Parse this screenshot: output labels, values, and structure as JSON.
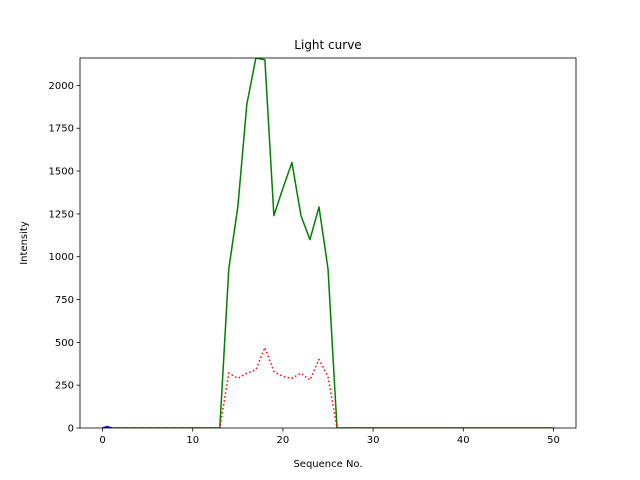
{
  "chart_data": {
    "type": "line",
    "title": "Light curve",
    "xlabel": "Sequence No.",
    "ylabel": "Intensity",
    "xlim": [
      -2.5,
      52.5
    ],
    "ylim": [
      0,
      2160
    ],
    "xticks": [
      0,
      10,
      20,
      30,
      40,
      50
    ],
    "yticks": [
      0,
      250,
      500,
      750,
      1000,
      1250,
      1500,
      1750,
      2000
    ],
    "grid": false,
    "legend": "none",
    "series": [
      {
        "color": "#008000",
        "style": "solid",
        "x": [
          0,
          1,
          2,
          3,
          4,
          5,
          6,
          7,
          8,
          9,
          10,
          11,
          12,
          13,
          14,
          15,
          16,
          17,
          18,
          19,
          20,
          21,
          22,
          23,
          24,
          25,
          26,
          27,
          28,
          29,
          30,
          31,
          32,
          33,
          34,
          35,
          36,
          37,
          38,
          39,
          40,
          41,
          42,
          43,
          44,
          45,
          46,
          47,
          48,
          49,
          50
        ],
        "y": [
          0,
          0,
          0,
          0,
          0,
          0,
          0,
          0,
          0,
          0,
          0,
          0,
          0,
          0,
          930,
          1290,
          1890,
          2160,
          2150,
          1240,
          1400,
          1550,
          1240,
          1100,
          1290,
          930,
          0,
          0,
          0,
          0,
          0,
          0,
          0,
          0,
          0,
          0,
          0,
          0,
          0,
          0,
          0,
          0,
          0,
          0,
          0,
          0,
          0,
          0,
          0,
          0,
          0
        ]
      },
      {
        "color": "#ff0000",
        "style": "dotted",
        "x": [
          0,
          1,
          2,
          3,
          4,
          5,
          6,
          7,
          8,
          9,
          10,
          11,
          12,
          13,
          14,
          15,
          16,
          17,
          18,
          19,
          20,
          21,
          22,
          23,
          24,
          25,
          26,
          27,
          28,
          29,
          30,
          31,
          32,
          33,
          34,
          35,
          36,
          37,
          38,
          39,
          40,
          41,
          42,
          43,
          44,
          45,
          46,
          47,
          48,
          49,
          50
        ],
        "y": [
          0,
          0,
          0,
          0,
          0,
          0,
          0,
          0,
          0,
          0,
          0,
          0,
          0,
          0,
          320,
          290,
          320,
          340,
          470,
          330,
          300,
          290,
          320,
          280,
          400,
          300,
          0,
          0,
          0,
          0,
          0,
          0,
          0,
          0,
          0,
          0,
          0,
          0,
          0,
          0,
          0,
          0,
          0,
          0,
          0,
          0,
          0,
          0,
          0,
          0,
          0
        ]
      },
      {
        "color": "#0000ff",
        "style": "solid",
        "x": [
          0,
          0.5,
          1
        ],
        "y": [
          0,
          8,
          0
        ]
      }
    ]
  }
}
